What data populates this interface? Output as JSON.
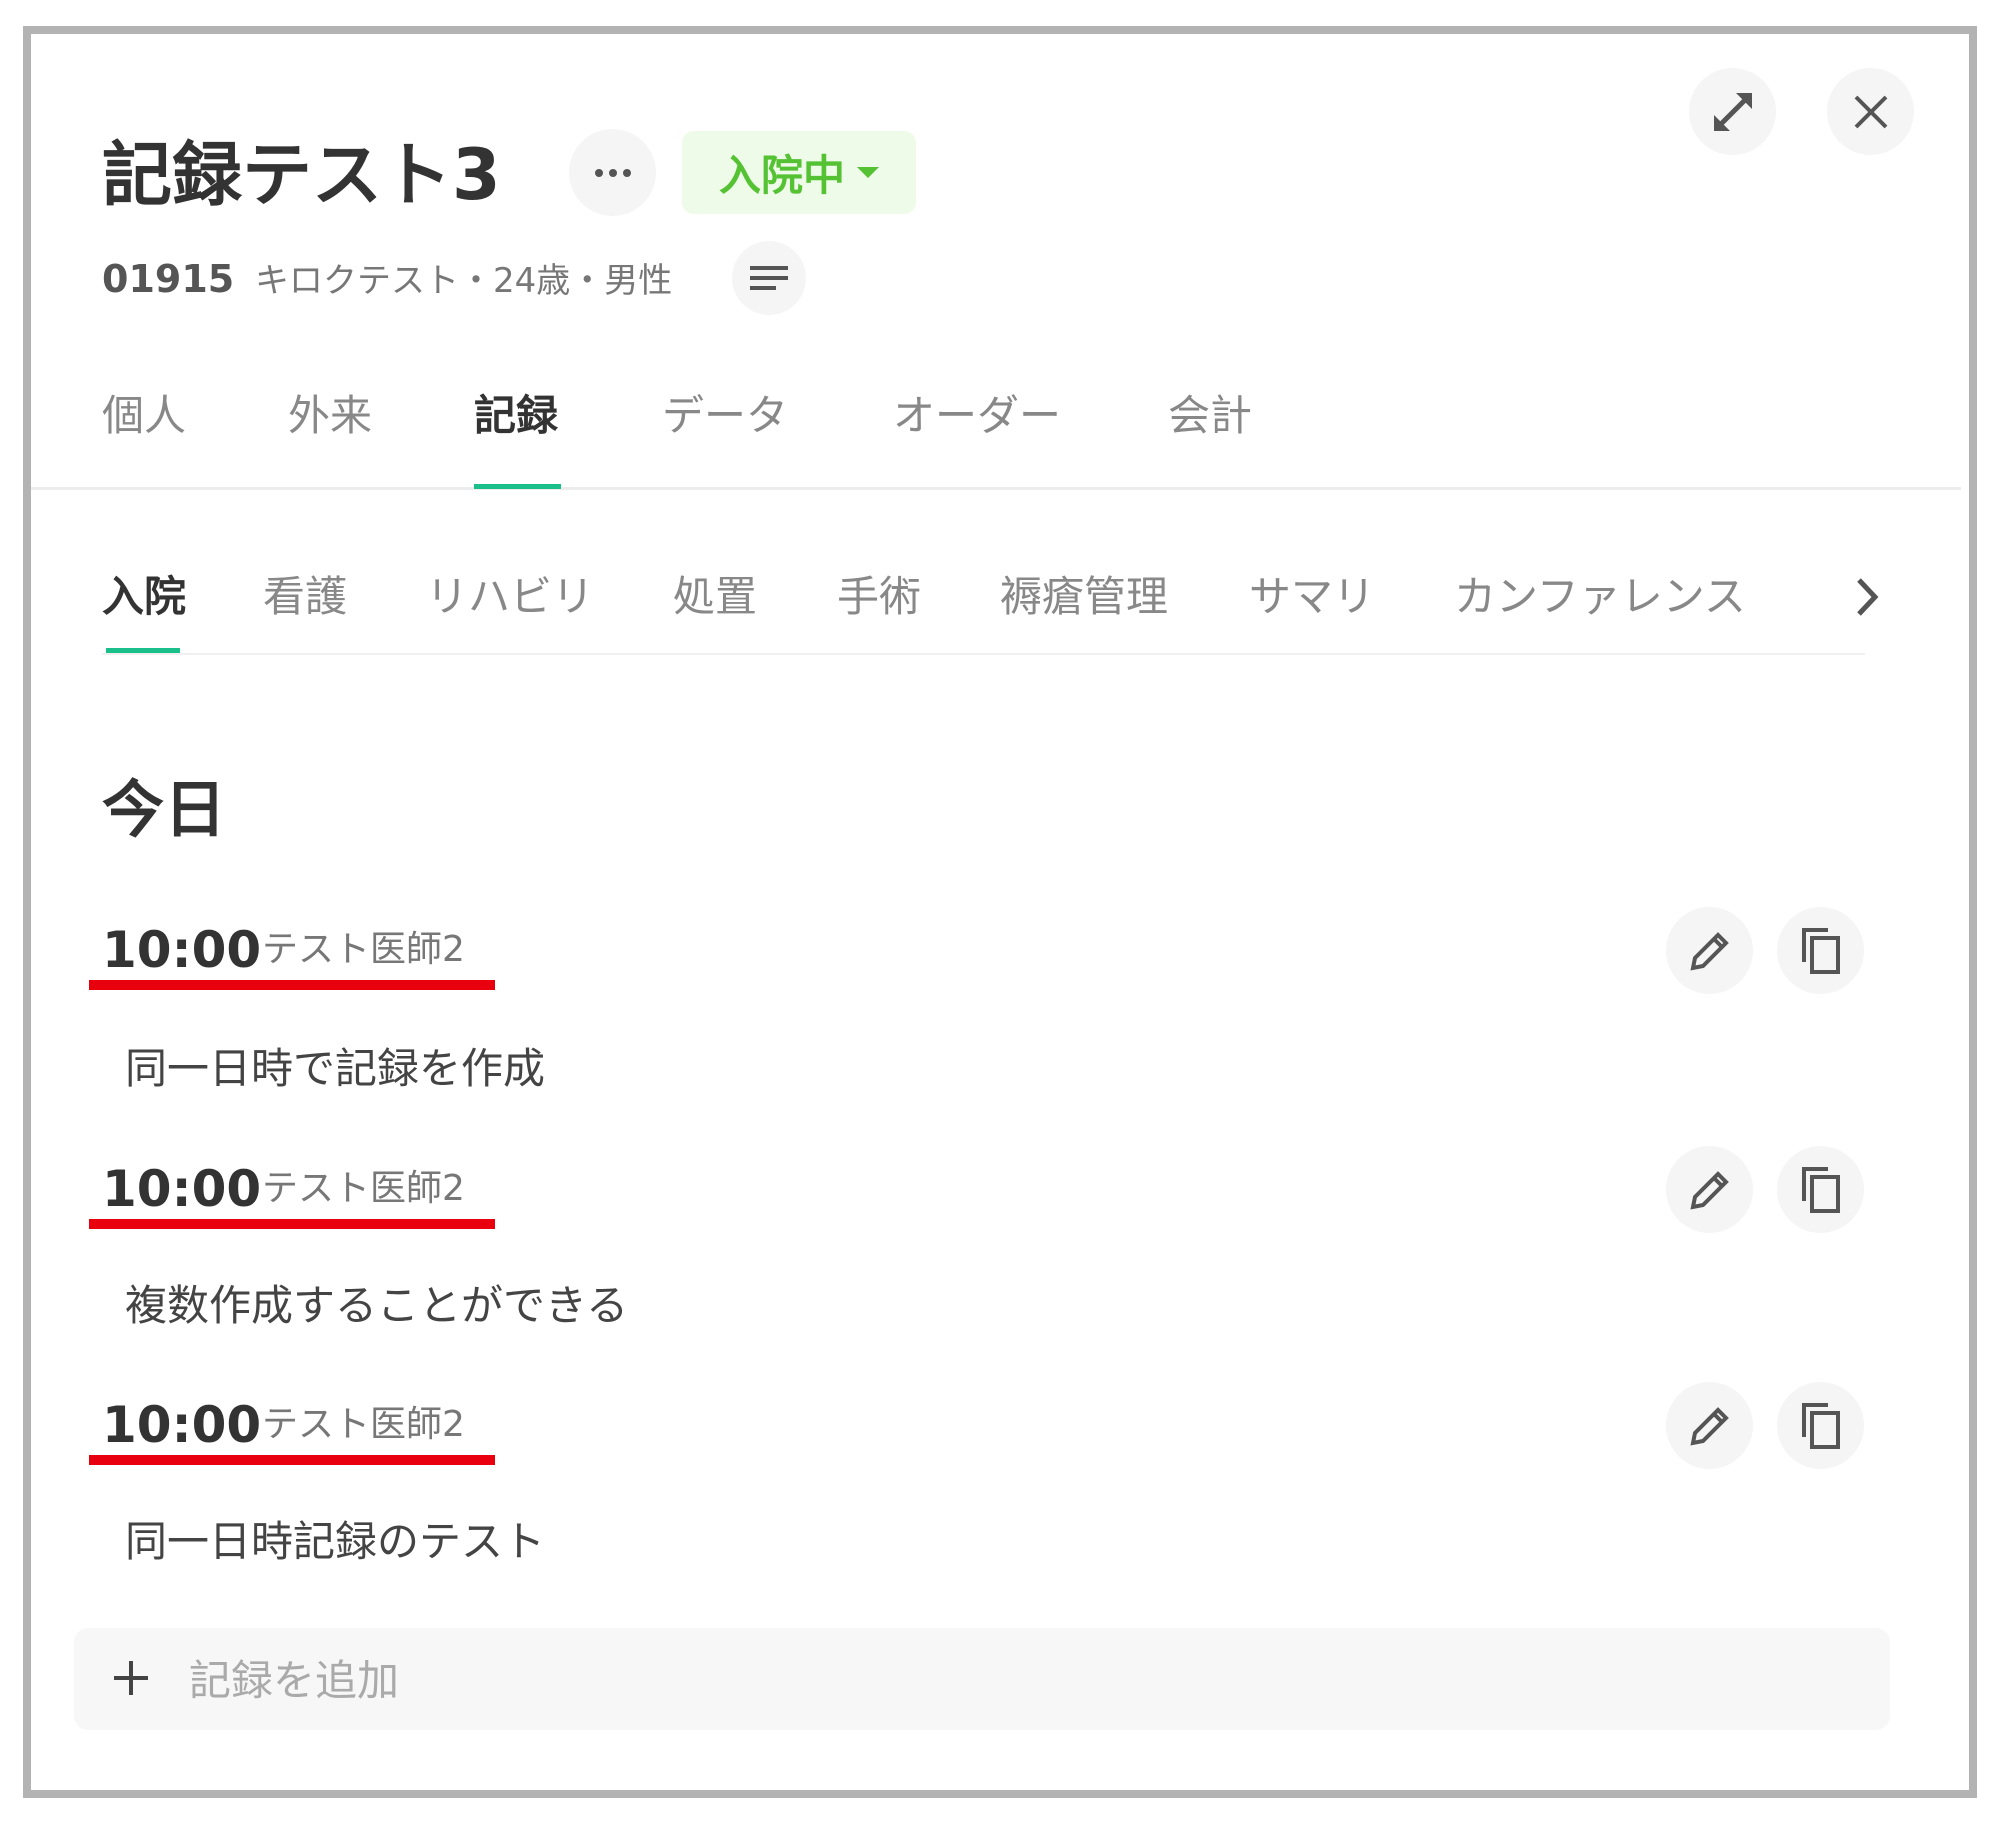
{
  "header": {
    "title": "記録テスト3",
    "more_icon": "ellipsis-icon",
    "status": {
      "label": "入院中",
      "color": "#55c234",
      "background": "#effbe9"
    },
    "patient_id": "01915",
    "patient_info": "キロクテスト・24歳・男性",
    "details_icon": "lines-icon",
    "expand_icon": "expand-icon",
    "close_icon": "close-icon"
  },
  "tabs": [
    {
      "label": "個人",
      "active": false
    },
    {
      "label": "外来",
      "active": false
    },
    {
      "label": "記録",
      "active": true
    },
    {
      "label": "データ",
      "active": false
    },
    {
      "label": "オーダー",
      "active": false
    },
    {
      "label": "会計",
      "active": false
    }
  ],
  "subtabs": [
    {
      "label": "入院",
      "active": true
    },
    {
      "label": "看護",
      "active": false
    },
    {
      "label": "リハビリ",
      "active": false
    },
    {
      "label": "処置",
      "active": false
    },
    {
      "label": "手術",
      "active": false
    },
    {
      "label": "褥瘡管理",
      "active": false
    },
    {
      "label": "サマリ",
      "active": false
    },
    {
      "label": "カンファレンス",
      "active": false
    }
  ],
  "section_title": "今日",
  "records": [
    {
      "time": "10:00",
      "author": "テスト医師2",
      "text": "同一日時で記録を作成"
    },
    {
      "time": "10:00",
      "author": "テスト医師2",
      "text": "複数作成することができる"
    },
    {
      "time": "10:00",
      "author": "テスト医師2",
      "text": "同一日時記録のテスト"
    }
  ],
  "add_record": {
    "label": "記録を追加",
    "icon": "plus-icon"
  },
  "colors": {
    "accent": "#1bbf8a",
    "highlight_underline": "#e8000f"
  }
}
